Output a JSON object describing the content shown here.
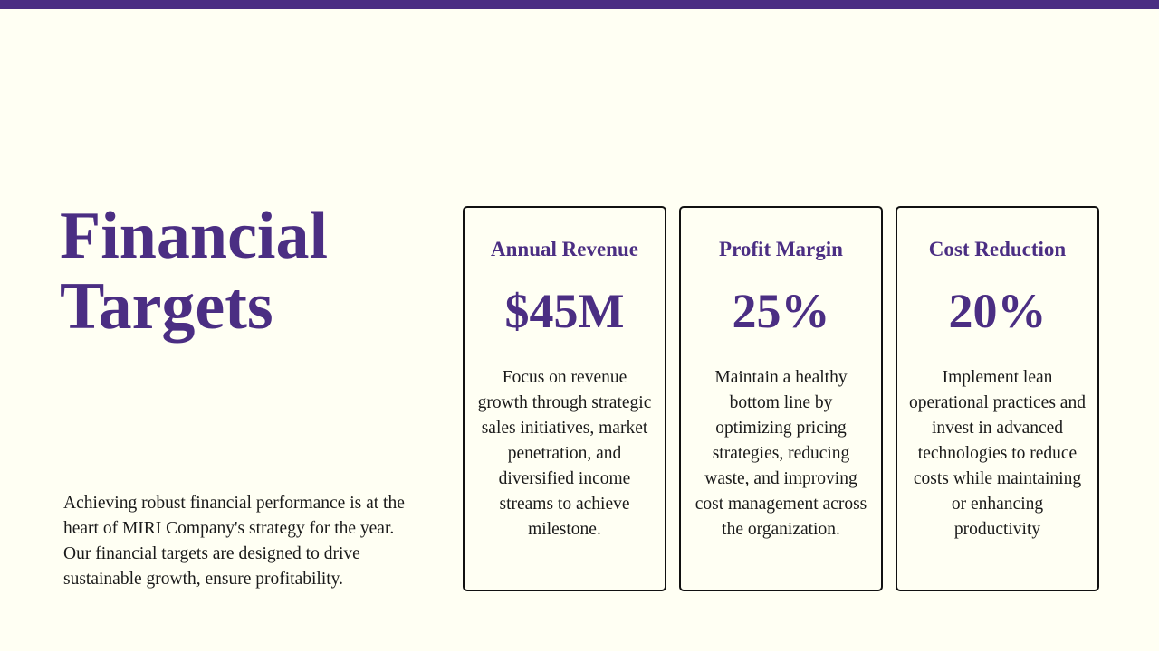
{
  "title": "Financial Targets",
  "intro": "Achieving robust financial performance is at the heart of MIRI Company's strategy for the year. Our financial targets are designed to drive sustainable growth, ensure profitability.",
  "cards": [
    {
      "heading": "Annual Revenue",
      "value": "$45M",
      "description": "Focus on revenue growth through strategic sales initiatives, market penetration, and diversified income streams to achieve milestone."
    },
    {
      "heading": "Profit Margin",
      "value": "25%",
      "description": "Maintain a healthy bottom line by optimizing pricing strategies, reducing waste, and improving cost management across the organization."
    },
    {
      "heading": "Cost Reduction",
      "value": "20%",
      "description": "Implement lean operational practices and invest in advanced technologies to reduce costs while maintaining or enhancing productivity"
    }
  ]
}
